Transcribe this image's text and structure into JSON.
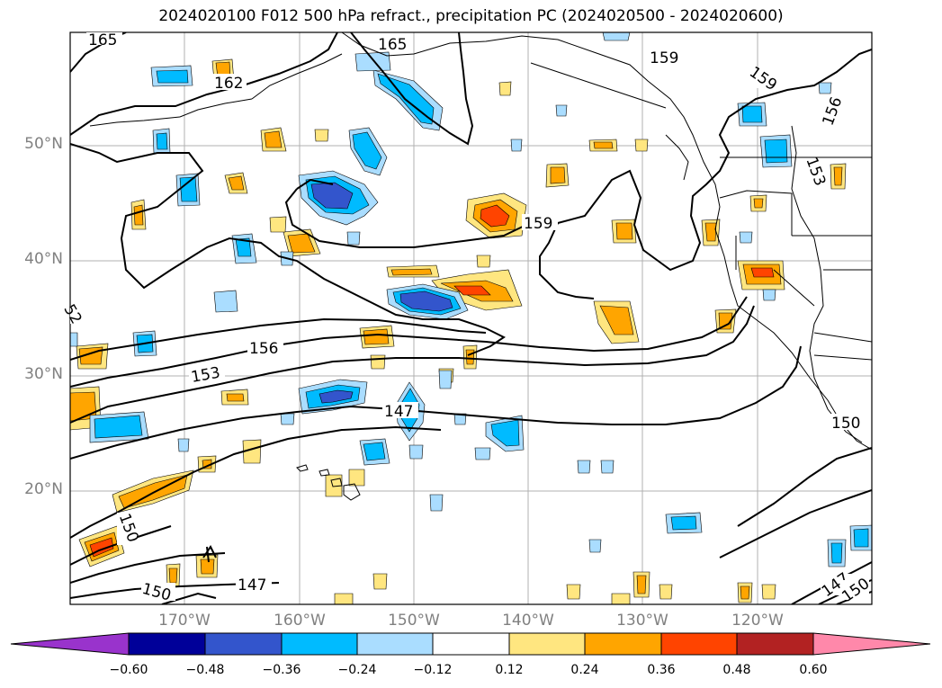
{
  "title": "2024020100 F012 500 hPa refract., precipitation PC (2024020500 - 2024020600)",
  "lat_labels": [
    "50°N",
    "40°N",
    "30°N",
    "20°N"
  ],
  "lon_labels": [
    "170°W",
    "160°W",
    "150°W",
    "140°W",
    "130°W",
    "120°W"
  ],
  "contour_labels": [
    "165",
    "165",
    "162",
    "159",
    "159",
    "156",
    "153",
    "159",
    "156",
    "153",
    "147",
    "150",
    "150",
    "150",
    "147",
    "147",
    "150",
    "52"
  ],
  "colorbar": {
    "ticks": [
      "−0.60",
      "−0.48",
      "−0.36",
      "−0.24",
      "−0.12",
      "0.12",
      "0.24",
      "0.36",
      "0.48",
      "0.60"
    ],
    "colors": [
      "#9933cc",
      "#000099",
      "#3355cc",
      "#00bbff",
      "#aaddff",
      "#ffffff",
      "#ffe680",
      "#ffa500",
      "#ff4400",
      "#b22222",
      "#ff88aa"
    ]
  },
  "colors": {
    "positive_low": "#ffe680",
    "positive_mid": "#ffa500",
    "positive_high": "#ff4400",
    "negative_low": "#aaddff",
    "negative_mid": "#00bbff",
    "negative_high": "#3355cc"
  }
}
